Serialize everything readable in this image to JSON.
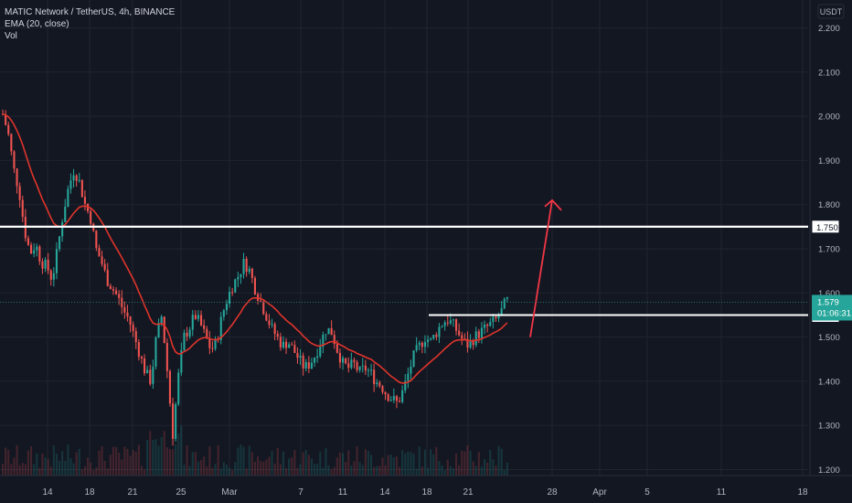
{
  "chart_data": {
    "type": "candlestick",
    "symbol_title": "MATIC Network / TetherUS, 4h, BINANCE",
    "indicator_label": "EMA (20, close)",
    "volume_label": "Vol",
    "currency": "USDT",
    "y_ticks": [
      "2.200",
      "2.100",
      "2.000",
      "1.900",
      "1.800",
      "1.700",
      "1.600",
      "1.500",
      "1.400",
      "1.300",
      "1.200"
    ],
    "x_ticks": [
      "14",
      "18",
      "21",
      "25",
      "Mar",
      "7",
      "11",
      "14",
      "18",
      "21",
      "28",
      "Apr",
      "5",
      "11",
      "18"
    ],
    "ylim": [
      1.18,
      2.24
    ],
    "price_label": {
      "value": "1.579",
      "countdown": "01:06:31"
    },
    "levels": [
      {
        "label": "1.750",
        "value": 1.75
      },
      {
        "label": "1.550",
        "value": 1.55
      }
    ],
    "colors": {
      "background": "#131722",
      "grid": "#1f2430",
      "up": "#26a69a",
      "down": "#ef5350",
      "ema": "#e0342b",
      "arrow": "#f23645",
      "text": "#b2b5be",
      "level_line": "#ffffff",
      "price_tag": "#26a69a"
    },
    "price_path": [
      [
        0,
        2.02
      ],
      [
        8,
        1.96
      ],
      [
        14,
        1.88
      ],
      [
        20,
        1.83
      ],
      [
        26,
        1.74
      ],
      [
        32,
        1.69
      ],
      [
        38,
        1.71
      ],
      [
        44,
        1.67
      ],
      [
        50,
        1.66
      ],
      [
        56,
        1.63
      ],
      [
        62,
        1.7
      ],
      [
        68,
        1.78
      ],
      [
        74,
        1.84
      ],
      [
        80,
        1.88
      ],
      [
        86,
        1.85
      ],
      [
        92,
        1.8
      ],
      [
        98,
        1.77
      ],
      [
        104,
        1.7
      ],
      [
        110,
        1.67
      ],
      [
        116,
        1.63
      ],
      [
        122,
        1.61
      ],
      [
        128,
        1.59
      ],
      [
        134,
        1.56
      ],
      [
        140,
        1.54
      ],
      [
        146,
        1.5
      ],
      [
        152,
        1.46
      ],
      [
        158,
        1.42
      ],
      [
        164,
        1.4
      ],
      [
        170,
        1.5
      ],
      [
        176,
        1.55
      ],
      [
        182,
        1.42
      ],
      [
        188,
        1.28
      ],
      [
        194,
        1.41
      ],
      [
        200,
        1.5
      ],
      [
        206,
        1.52
      ],
      [
        212,
        1.55
      ],
      [
        218,
        1.53
      ],
      [
        224,
        1.5
      ],
      [
        230,
        1.47
      ],
      [
        236,
        1.49
      ],
      [
        242,
        1.55
      ],
      [
        248,
        1.59
      ],
      [
        254,
        1.62
      ],
      [
        260,
        1.64
      ],
      [
        266,
        1.67
      ],
      [
        272,
        1.65
      ],
      [
        278,
        1.61
      ],
      [
        284,
        1.58
      ],
      [
        290,
        1.55
      ],
      [
        296,
        1.52
      ],
      [
        302,
        1.5
      ],
      [
        308,
        1.48
      ],
      [
        314,
        1.49
      ],
      [
        320,
        1.47
      ],
      [
        326,
        1.45
      ],
      [
        332,
        1.43
      ],
      [
        338,
        1.44
      ],
      [
        344,
        1.46
      ],
      [
        350,
        1.49
      ],
      [
        356,
        1.52
      ],
      [
        362,
        1.51
      ],
      [
        368,
        1.47
      ],
      [
        374,
        1.44
      ],
      [
        380,
        1.43
      ],
      [
        386,
        1.44
      ],
      [
        392,
        1.42
      ],
      [
        398,
        1.43
      ],
      [
        404,
        1.42
      ],
      [
        410,
        1.4
      ],
      [
        416,
        1.39
      ],
      [
        422,
        1.37
      ],
      [
        428,
        1.36
      ],
      [
        434,
        1.35
      ],
      [
        440,
        1.38
      ],
      [
        446,
        1.42
      ],
      [
        452,
        1.46
      ],
      [
        458,
        1.48
      ],
      [
        464,
        1.5
      ],
      [
        470,
        1.49
      ],
      [
        476,
        1.51
      ],
      [
        482,
        1.53
      ],
      [
        488,
        1.54
      ],
      [
        494,
        1.53
      ],
      [
        500,
        1.51
      ],
      [
        506,
        1.49
      ],
      [
        512,
        1.48
      ],
      [
        518,
        1.5
      ],
      [
        524,
        1.51
      ],
      [
        530,
        1.52
      ],
      [
        536,
        1.53
      ],
      [
        542,
        1.54
      ],
      [
        548,
        1.56
      ],
      [
        552,
        1.58
      ],
      [
        556,
        1.585
      ]
    ],
    "arrow": {
      "from": [
        580,
        1.5
      ],
      "to": [
        604,
        1.81
      ]
    }
  }
}
